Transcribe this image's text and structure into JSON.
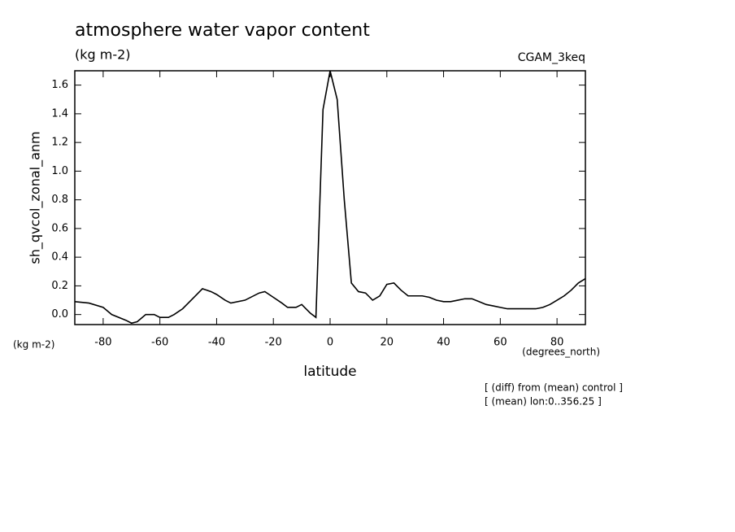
{
  "chart_data": {
    "type": "line",
    "title": "atmosphere water vapor content",
    "subtitle": "(kg m-2)",
    "run_label": "CGAM_3keq",
    "y_label": "sh_qvcol_zonal_anm",
    "y_units": "(kg m-2)",
    "x_label": "latitude",
    "x_units": "(degrees_north)",
    "notes": [
      "[ (diff) from (mean) control ]",
      "[ (mean) lon:0..356.25 ]"
    ],
    "xlim": [
      -90,
      90
    ],
    "ylim": [
      -0.07,
      1.7
    ],
    "xticks": [
      -80,
      -60,
      -40,
      -20,
      0,
      20,
      40,
      60,
      80
    ],
    "yticks": [
      {
        "value": 0,
        "label": "0.0"
      },
      0.2,
      0.4,
      0.6,
      0.8,
      {
        "value": 1,
        "label": "1.0"
      },
      1.2,
      1.4,
      1.6
    ],
    "color": "#000000",
    "x": [
      -90,
      -85,
      -80,
      -77,
      -72,
      -70,
      -68,
      -65,
      -62,
      -60,
      -57,
      -55,
      -52,
      -48,
      -45,
      -42,
      -40,
      -37,
      -35,
      -30,
      -25,
      -23,
      -20,
      -17,
      -15,
      -12,
      -10,
      -7,
      -5,
      -2.5,
      0,
      2.5,
      5,
      7.5,
      10,
      12.5,
      15,
      17.5,
      20,
      22.5,
      25,
      27.5,
      30,
      32.5,
      35,
      37.5,
      40,
      42.5,
      45,
      47.5,
      50,
      52.5,
      55,
      57.5,
      60,
      62.5,
      65,
      67.5,
      70,
      72.5,
      75,
      77.5,
      80,
      82.5,
      85,
      87.5,
      90
    ],
    "values": [
      0.09,
      0.08,
      0.05,
      0.0,
      -0.04,
      -0.06,
      -0.05,
      0.0,
      0.0,
      -0.02,
      -0.02,
      0.0,
      0.04,
      0.12,
      0.18,
      0.16,
      0.14,
      0.1,
      0.08,
      0.1,
      0.15,
      0.16,
      0.12,
      0.08,
      0.05,
      0.05,
      0.07,
      0.01,
      -0.02,
      1.43,
      1.7,
      1.5,
      0.8,
      0.22,
      0.16,
      0.15,
      0.1,
      0.13,
      0.21,
      0.22,
      0.17,
      0.13,
      0.13,
      0.13,
      0.12,
      0.1,
      0.09,
      0.09,
      0.1,
      0.11,
      0.11,
      0.09,
      0.07,
      0.06,
      0.05,
      0.04,
      0.04,
      0.04,
      0.04,
      0.04,
      0.05,
      0.07,
      0.1,
      0.13,
      0.17,
      0.22,
      0.25
    ]
  }
}
